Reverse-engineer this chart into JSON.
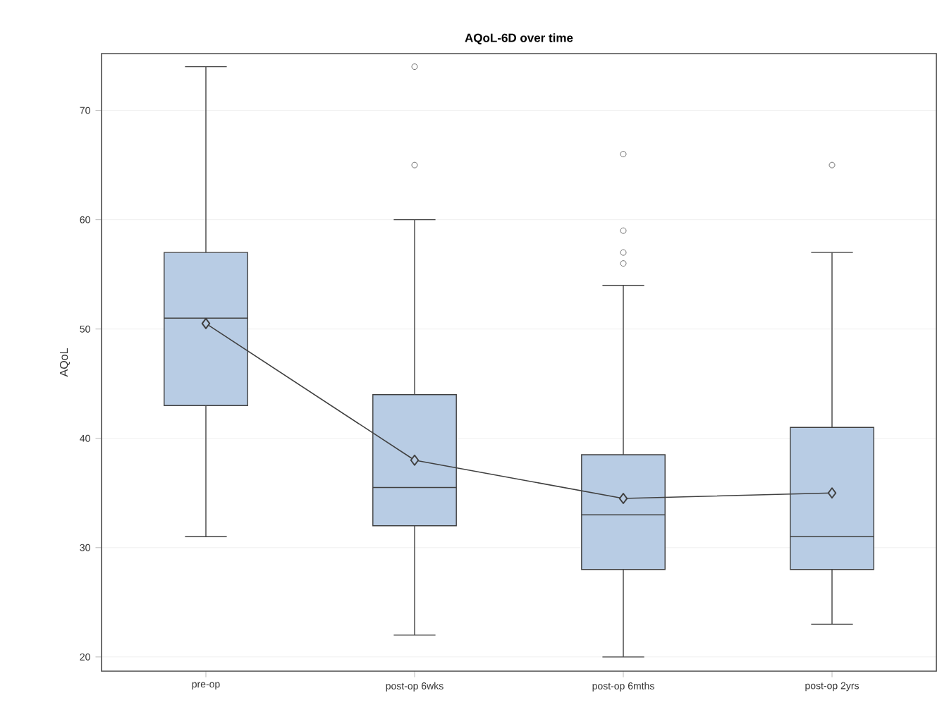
{
  "chart_data": {
    "type": "box",
    "title": "AQoL-6D over time",
    "ylabel": "AQoL",
    "categories": [
      "pre-op",
      "post-op 6wks",
      "post-op 6mths",
      "post-op 2yrs"
    ],
    "color": "#b8cce4",
    "boxes": [
      {
        "low": 31,
        "q1": 43,
        "median": 51,
        "q3": 57,
        "high": 74
      },
      {
        "low": 22,
        "q1": 32,
        "median": 35.5,
        "q3": 44,
        "high": 60,
        "outliers": [
          65,
          74
        ]
      },
      {
        "low": 20,
        "q1": 28,
        "median": 33,
        "q3": 38.5,
        "high": 54,
        "outliers": [
          56,
          57,
          59,
          66
        ]
      },
      {
        "low": 23,
        "q1": 28,
        "median": 31,
        "q3": 41,
        "high": 57,
        "outliers": [
          65
        ]
      }
    ],
    "series": [
      {
        "type": "line",
        "color": "#404040",
        "x": [
          "pre-op",
          "post-op 6wks",
          "post-op 6mths",
          "post-op 2yrs"
        ],
        "values": [
          50.5,
          38,
          34.5,
          35
        ],
        "marker": "diamond",
        "line_style": "solid"
      }
    ],
    "ylim": [
      18.7,
      75.2
    ],
    "yticks": [
      20,
      30,
      40,
      50,
      60,
      70
    ],
    "grid": "y"
  }
}
